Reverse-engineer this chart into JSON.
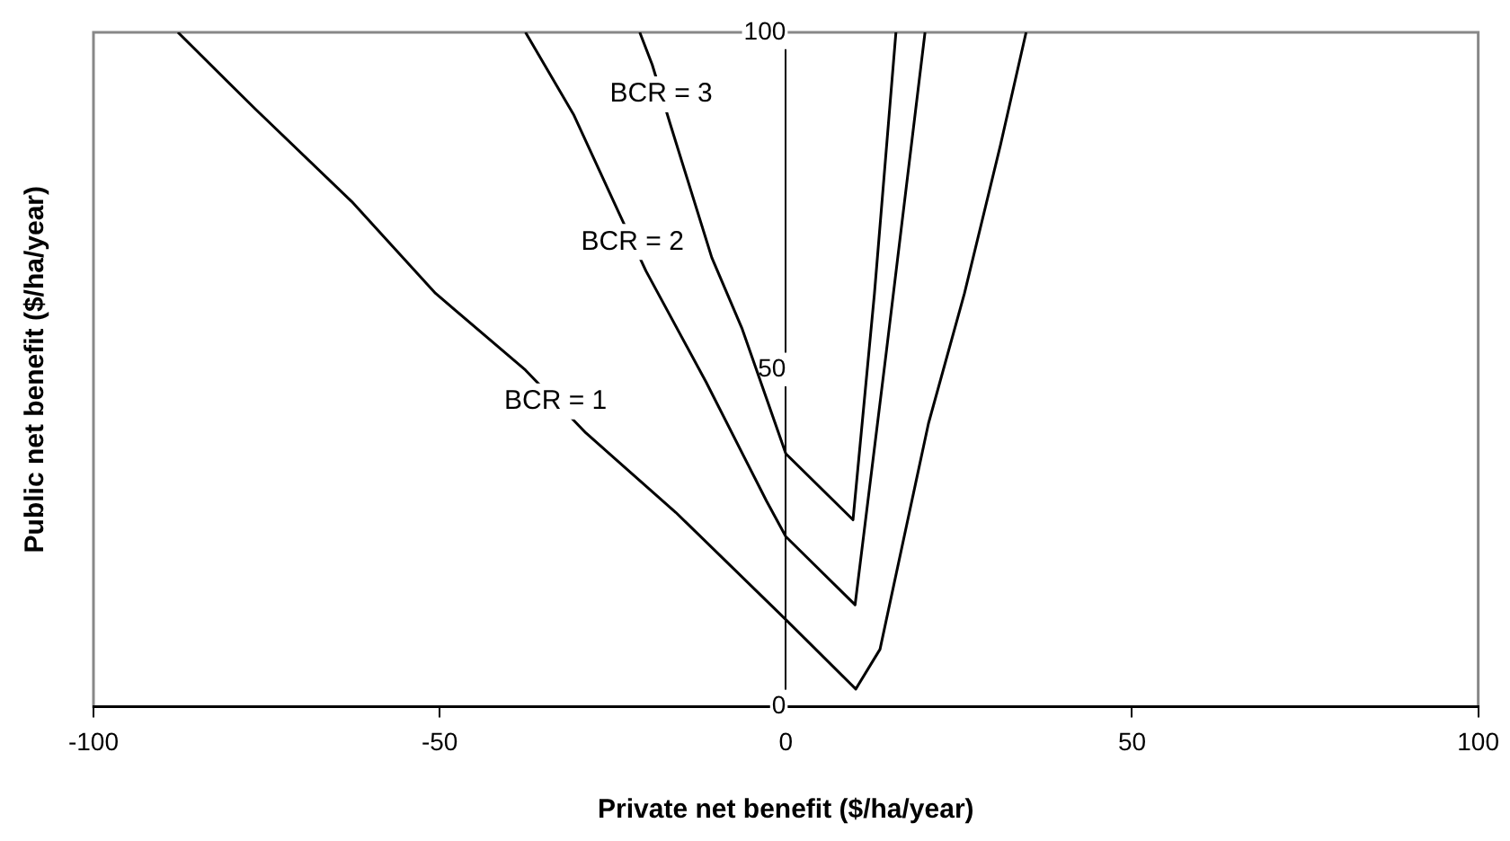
{
  "chart_data": {
    "type": "line",
    "xlabel": "Private net benefit ($/ha/year)",
    "ylabel": "Public net benefit ($/ha/year)",
    "xlim": [
      -100,
      100
    ],
    "xticks": [
      -100,
      -50,
      0,
      50,
      100
    ],
    "ylim": [
      0,
      100
    ],
    "yticks": [
      0,
      50,
      100
    ],
    "grid": false,
    "legend": false,
    "marker": "none",
    "line_style": "solid",
    "series": [
      {
        "name": "BCR = 1",
        "color": "#000000",
        "x": [
          -87.8,
          -76.6,
          -62.7,
          -50.6,
          -37.6,
          -28.9,
          -15.9,
          0,
          10.1,
          13.6,
          20.6,
          25.8,
          31,
          34.7
        ],
        "values": [
          100,
          88.6,
          74.9,
          61.3,
          49.9,
          40.6,
          28.8,
          12.9,
          2.6,
          8.5,
          42,
          61.3,
          83.3,
          100
        ]
      },
      {
        "name": "BCR = 2",
        "color": "#000000",
        "x": [
          -37.6,
          -30.6,
          -24.1,
          -20.2,
          -11.5,
          -2.8,
          0,
          10,
          14.5,
          20.1
        ],
        "values": [
          100,
          87.7,
          73.2,
          64.6,
          48.1,
          30.5,
          25.2,
          15.1,
          52.5,
          100
        ]
      },
      {
        "name": "BCR = 3",
        "color": "#000000",
        "x": [
          -21.1,
          -19.3,
          -16.7,
          -10.7,
          -6.3,
          0,
          9.7,
          12.8,
          15.9
        ],
        "values": [
          100,
          95.2,
          86.4,
          66.6,
          56,
          37.5,
          27.7,
          61.3,
          100
        ]
      }
    ]
  }
}
